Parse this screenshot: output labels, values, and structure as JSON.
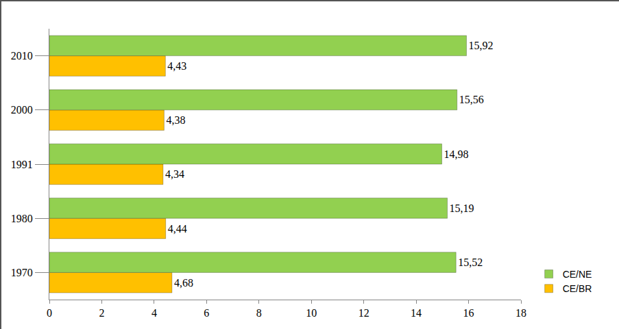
{
  "chart_data": {
    "type": "bar",
    "orientation": "horizontal",
    "categories": [
      "1970",
      "1980",
      "1991",
      "2000",
      "2010"
    ],
    "series": [
      {
        "name": "CE/NE",
        "color": "#92d050",
        "values": [
          15.52,
          15.19,
          14.98,
          15.56,
          15.92
        ],
        "value_labels": [
          "15,52",
          "15,19",
          "14,98",
          "15,56",
          "15,92"
        ]
      },
      {
        "name": "CE/BR",
        "color": "#ffc000",
        "values": [
          4.68,
          4.44,
          4.34,
          4.38,
          4.43
        ],
        "value_labels": [
          "4,68",
          "4,44",
          "4,34",
          "4,38",
          "4,43"
        ]
      }
    ],
    "xlim": [
      0,
      18
    ],
    "xticks": [
      0,
      2,
      4,
      6,
      8,
      10,
      12,
      14,
      16,
      18
    ],
    "data_labels": true,
    "grid": false,
    "legend": "bottom right"
  }
}
